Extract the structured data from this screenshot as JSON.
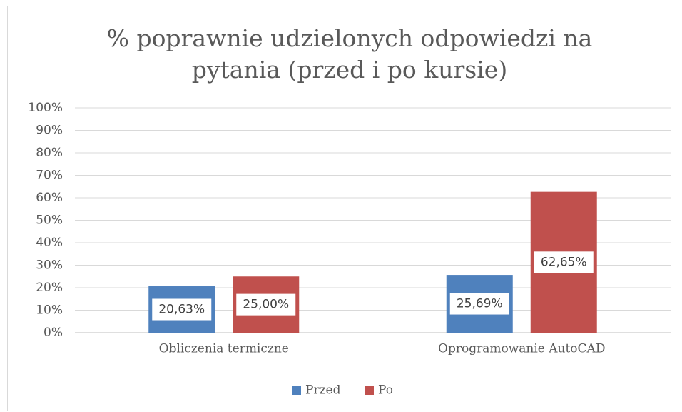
{
  "chart_data": {
    "type": "bar",
    "title": [
      "% poprawnie udzielonych odpowiedzi na",
      "pytania (przed i po kursie)"
    ],
    "categories": [
      "Obliczenia termiczne",
      "Oprogramowanie AutoCAD"
    ],
    "series": [
      {
        "name": "Przed",
        "color": "#4f81bd",
        "values": [
          20.63,
          25.69
        ],
        "value_labels": [
          "20,63%",
          "25,69%"
        ]
      },
      {
        "name": "Po",
        "color": "#c0504d",
        "values": [
          25.0,
          62.65
        ],
        "value_labels": [
          "25,00%",
          "62,65%"
        ]
      }
    ],
    "ylim": [
      0,
      100
    ],
    "yticks": [
      {
        "value": 0,
        "label": "0%"
      },
      {
        "value": 10,
        "label": "10%"
      },
      {
        "value": 20,
        "label": "20%"
      },
      {
        "value": 30,
        "label": "30%"
      },
      {
        "value": 40,
        "label": "40%"
      },
      {
        "value": 50,
        "label": "50%"
      },
      {
        "value": 60,
        "label": "60%"
      },
      {
        "value": 70,
        "label": "70%"
      },
      {
        "value": 80,
        "label": "80%"
      },
      {
        "value": 90,
        "label": "90%"
      },
      {
        "value": 100,
        "label": "100%"
      }
    ],
    "grid": true
  }
}
